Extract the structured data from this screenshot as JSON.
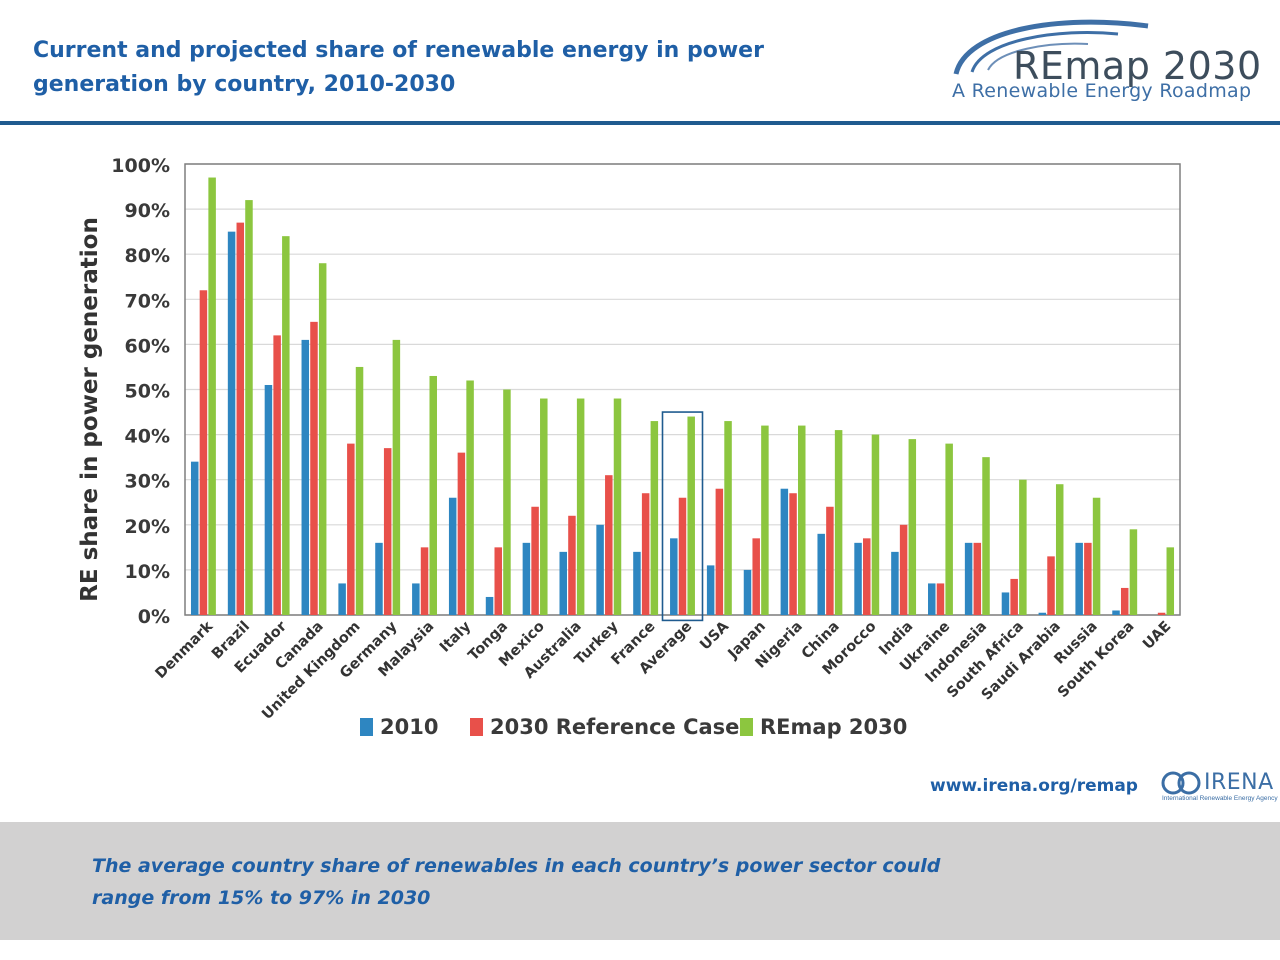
{
  "header": {
    "title": "Current and projected share of renewable energy in power generation by country, 2010-2030",
    "logo_main": "REmap 2030",
    "logo_sub": "A Renewable Energy Roadmap"
  },
  "footer": {
    "url": "www.irena.org/remap",
    "irena_name": "IRENA",
    "irena_tagline": "International Renewable Energy Agency",
    "caption": "The average country share of renewables in each country’s power sector could range from 15% to 97% in 2030"
  },
  "colors": {
    "title": "#1f5fa6",
    "rule": "#1f5b8f",
    "series_2010": "#2e86c1",
    "series_ref": "#e8504a",
    "series_remap": "#8cc63f",
    "highlight_box": "#1f5b8f",
    "footer_bg": "#d2d1d1"
  },
  "chart_data": {
    "type": "bar",
    "title": "",
    "xlabel": "",
    "ylabel": "RE share in power generation",
    "ylim": [
      0,
      100
    ],
    "yticks": [
      "0%",
      "10%",
      "20%",
      "30%",
      "40%",
      "50%",
      "60%",
      "70%",
      "80%",
      "90%",
      "100%"
    ],
    "grid": true,
    "legend_position": "bottom",
    "highlighted_category": "Average",
    "categories": [
      "Denmark",
      "Brazil",
      "Ecuador",
      "Canada",
      "United Kingdom",
      "Germany",
      "Malaysia",
      "Italy",
      "Tonga",
      "Mexico",
      "Australia",
      "Turkey",
      "France",
      "Average",
      "USA",
      "Japan",
      "Nigeria",
      "China",
      "Morocco",
      "India",
      "Ukraine",
      "Indonesia",
      "South Africa",
      "Saudi Arabia",
      "Russia",
      "South Korea",
      "UAE"
    ],
    "series": [
      {
        "name": "2010",
        "values": [
          34,
          85,
          51,
          61,
          7,
          16,
          7,
          26,
          4,
          16,
          14,
          20,
          14,
          17,
          11,
          10,
          28,
          18,
          16,
          14,
          7,
          16,
          5,
          0.5,
          16,
          1,
          0
        ]
      },
      {
        "name": "2030 Reference Case",
        "values": [
          72,
          87,
          62,
          65,
          38,
          37,
          15,
          36,
          15,
          24,
          22,
          31,
          27,
          26,
          28,
          17,
          27,
          24,
          17,
          20,
          7,
          16,
          8,
          13,
          16,
          6,
          0.5
        ]
      },
      {
        "name": "REmap 2030",
        "values": [
          97,
          92,
          84,
          78,
          55,
          61,
          53,
          52,
          50,
          48,
          48,
          48,
          43,
          44,
          43,
          42,
          42,
          41,
          40,
          39,
          38,
          35,
          30,
          29,
          26,
          19,
          15
        ]
      }
    ]
  }
}
